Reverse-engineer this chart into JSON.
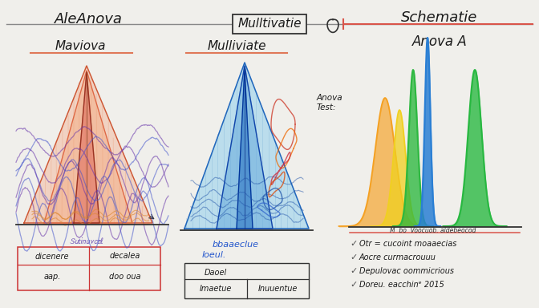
{
  "bg_color": "#f0efeb",
  "title_text": "AleAnova",
  "title2_text": "Mulltivatie",
  "title3_text": "Schematie",
  "sec1_title": "Maviova",
  "sec2_title": "Mulliviate",
  "sec3_title": "Anova A",
  "underline_color": "#e07858",
  "note_text": "Anova\nTest:",
  "table2_col1": "Daoel",
  "table2_row2c1": "Imaetue",
  "table2_row2c2": "Inuuentue",
  "table1_r1c1": "dicenere",
  "table1_r1c2": "decalea",
  "table1_r2c1": "aap.",
  "table1_r2c2": "doo oua",
  "checks": [
    "Otr = cucoint moaaecias",
    "Aocre curmacrouuu",
    "Depulovac oommicrious",
    "Doreu. eacchinᵉ 2015"
  ],
  "pink_line": "#d9554a",
  "dark": "#1a1a1a",
  "mid_gray": "#555555"
}
